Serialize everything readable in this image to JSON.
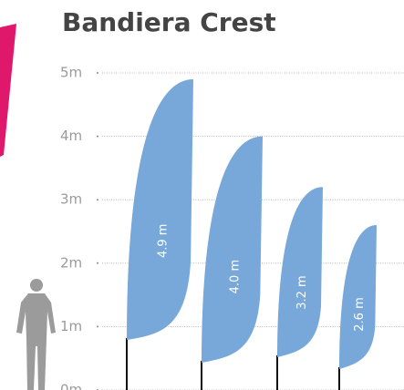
{
  "chart_data": {
    "type": "bar",
    "title": "Bandiera Crest",
    "values": [
      4.9,
      4.0,
      3.2,
      2.6
    ],
    "value_labels": [
      "4.9 m",
      "4.0 m",
      "3.2 m",
      "2.6 m"
    ],
    "color": "#77a8d9",
    "ylim": [
      0,
      5
    ],
    "yticks": [
      {
        "value": 0,
        "label": "0m"
      },
      {
        "value": 1,
        "label": "1m"
      },
      {
        "value": 2,
        "label": "2m"
      },
      {
        "value": 3,
        "label": "3m"
      },
      {
        "value": 4,
        "label": "4m"
      },
      {
        "value": 5,
        "label": "5m"
      }
    ],
    "grid": true
  }
}
